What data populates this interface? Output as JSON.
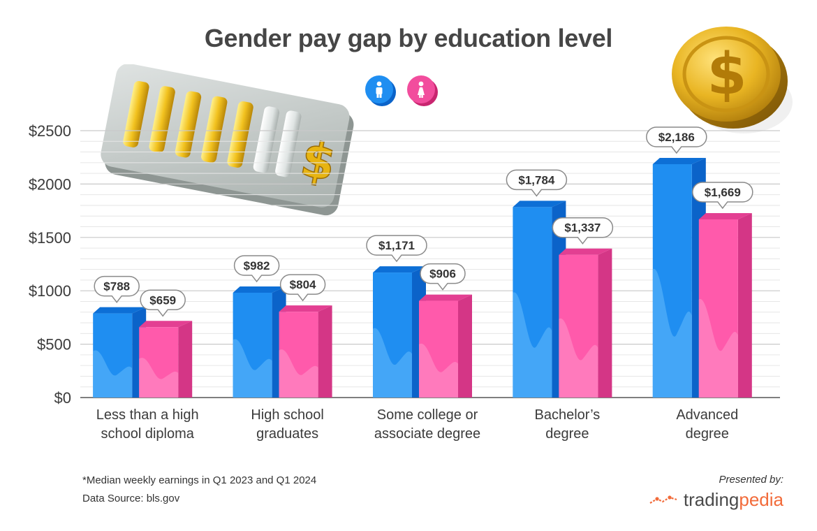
{
  "chart_data": {
    "type": "bar",
    "title": "Gender pay gap by education level",
    "categories": [
      "Less than a high school diploma",
      "High school graduates",
      "Some college or associate degree",
      "Bachelor’s degree",
      "Advanced degree"
    ],
    "category_lines": [
      [
        "Less than a high",
        "school diploma"
      ],
      [
        "High school",
        "graduates"
      ],
      [
        "Some college or",
        "associate degree"
      ],
      [
        "Bachelor’s",
        "degree"
      ],
      [
        "Advanced",
        "degree"
      ]
    ],
    "series": [
      {
        "icon": "male-icon",
        "color": "#1f8ef1",
        "values": [
          788,
          982,
          1171,
          1784,
          2186
        ],
        "labels": [
          "$788",
          "$982",
          "$1,171",
          "$1,784",
          "$2,186"
        ]
      },
      {
        "icon": "female-icon",
        "color": "#f24d9d",
        "values": [
          659,
          804,
          906,
          1337,
          1669
        ],
        "labels": [
          "$659",
          "$804",
          "$906",
          "$1,337",
          "$1,669"
        ]
      }
    ],
    "ylim": [
      0,
      2500
    ],
    "yticks": [
      0,
      500,
      1000,
      1500,
      2000,
      2500
    ],
    "ytick_labels": [
      "$0",
      "$500",
      "$1000",
      "$1500",
      "$2000",
      "$2500"
    ],
    "grid": true,
    "legend_position": "top-center"
  },
  "footer": {
    "note": "*Median weekly earnings in Q1 2023 and Q1 2024",
    "source": "Data Source: bls.gov",
    "presented_by": "Presented by:",
    "brand_part1": "trading",
    "brand_part2": "pedia"
  },
  "decor": {
    "coin_symbol": "$",
    "bar_meter_symbol": "$",
    "legend_male_icon": "male-icon",
    "legend_female_icon": "female-icon"
  }
}
